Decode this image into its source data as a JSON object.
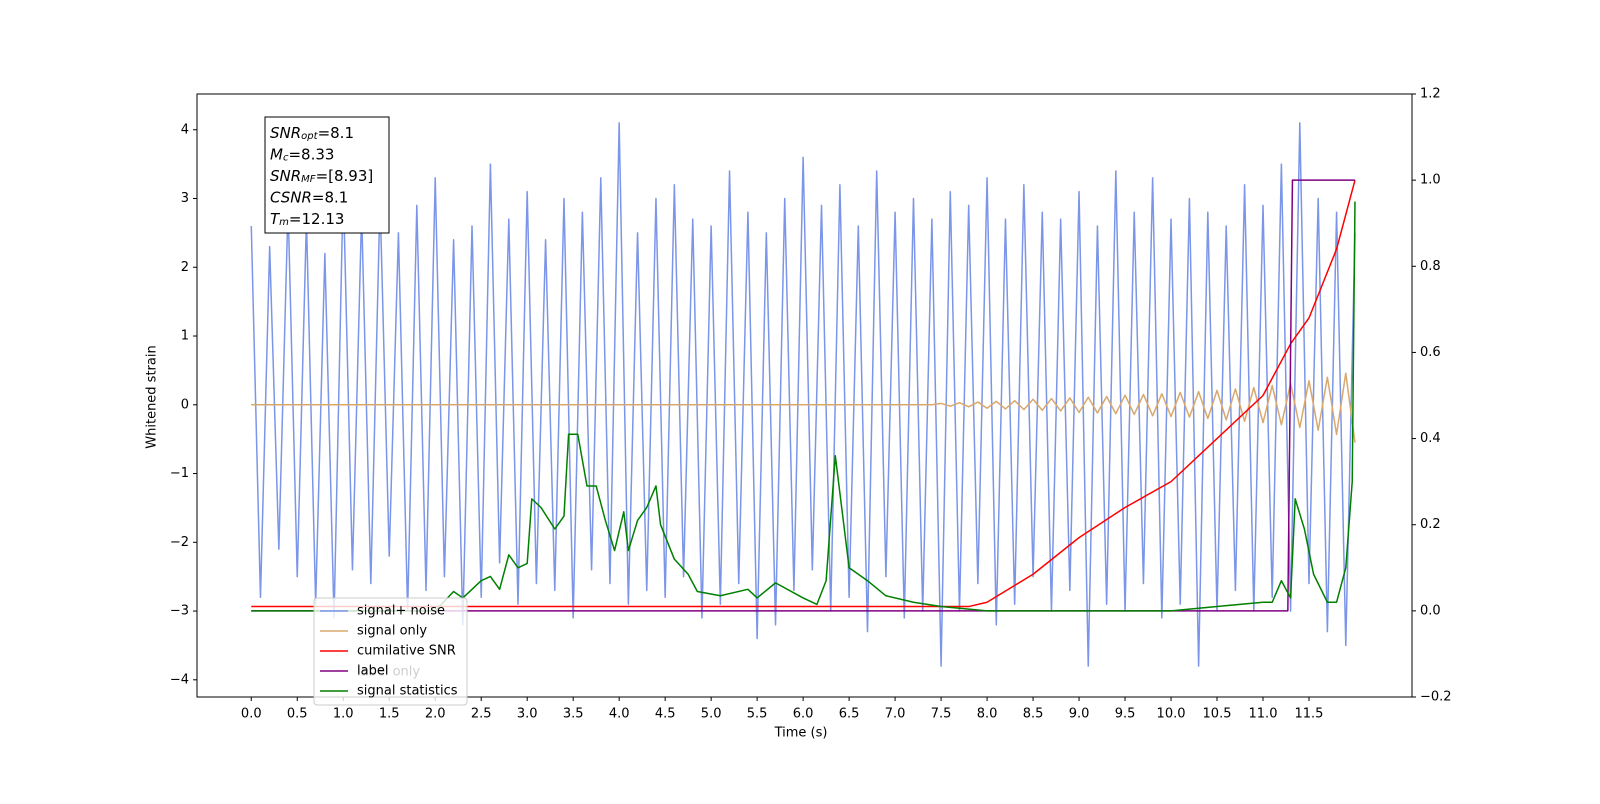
{
  "chart_data": {
    "type": "line",
    "xlabel": "Time (s)",
    "ylabel": "Whitened strain",
    "xlim": [
      -0.59,
      12.62
    ],
    "ylim": [
      -4.25,
      4.52
    ],
    "y2lim": [
      -0.2,
      1.2
    ],
    "xticks": [
      {
        "value": 0,
        "label": "0.0"
      },
      0.5,
      {
        "value": 1,
        "label": "1.0"
      },
      1.5,
      {
        "value": 2,
        "label": "2.0"
      },
      2.5,
      {
        "value": 3,
        "label": "3.0"
      },
      3.5,
      {
        "value": 4,
        "label": "4.0"
      },
      4.5,
      {
        "value": 5,
        "label": "5.0"
      },
      5.5,
      {
        "value": 6,
        "label": "6.0"
      },
      6.5,
      {
        "value": 7,
        "label": "7.0"
      },
      7.5,
      {
        "value": 8,
        "label": "8.0"
      },
      8.5,
      {
        "value": 9,
        "label": "9.0"
      },
      9.5,
      {
        "value": 10,
        "label": "10.0"
      },
      10.5,
      {
        "value": 11,
        "label": "11.0"
      },
      11.5
    ],
    "yticks": [
      {
        "value": -4,
        "label": "−4"
      },
      {
        "value": -3,
        "label": "−3"
      },
      {
        "value": -2,
        "label": "−2"
      },
      {
        "value": -1,
        "label": "−1"
      },
      0,
      1,
      2,
      3,
      4
    ],
    "y2ticks": [
      {
        "value": -0.2,
        "label": "−0.2"
      },
      {
        "value": 0,
        "label": "0.0"
      },
      0.2,
      0.4,
      0.6,
      0.8,
      {
        "value": 1,
        "label": "1.0"
      },
      1.2
    ],
    "info_box": [
      {
        "main": "SNR",
        "sub": "opt",
        "rest": "=8.1"
      },
      {
        "main": "M",
        "sub": "c",
        "rest": "=8.33"
      },
      {
        "main": "SNR",
        "sub": "MF",
        "rest": "=[8.93]"
      },
      {
        "main": "CSNR",
        "sub": null,
        "rest": "=8.1"
      },
      {
        "main": "T",
        "sub": "m",
        "rest": "=12.13"
      }
    ],
    "annotation": "label only",
    "x": [
      0,
      0.1,
      0.2,
      0.3,
      0.4,
      0.5,
      0.6,
      0.7,
      0.8,
      0.9,
      1,
      1.1,
      1.2,
      1.3,
      1.4,
      1.5,
      1.6,
      1.7,
      1.8,
      1.9,
      2,
      2.1,
      2.2,
      2.3,
      2.4,
      2.5,
      2.6,
      2.7,
      2.8,
      2.9,
      3,
      3.1,
      3.2,
      3.3,
      3.4,
      3.5,
      3.6,
      3.7,
      3.8,
      3.9,
      4,
      4.1,
      4.2,
      4.3,
      4.4,
      4.5,
      4.6,
      4.7,
      4.8,
      4.9,
      5,
      5.1,
      5.2,
      5.3,
      5.4,
      5.5,
      5.6,
      5.7,
      5.8,
      5.9,
      6,
      6.1,
      6.2,
      6.3,
      6.4,
      6.5,
      6.6,
      6.7,
      6.8,
      6.9,
      7,
      7.1,
      7.2,
      7.3,
      7.4,
      7.5,
      7.6,
      7.7,
      7.8,
      7.9,
      8,
      8.1,
      8.2,
      8.3,
      8.4,
      8.5,
      8.6,
      8.7,
      8.8,
      8.9,
      9,
      9.1,
      9.2,
      9.3,
      9.4,
      9.5,
      9.6,
      9.7,
      9.8,
      9.9,
      10,
      10.1,
      10.2,
      10.3,
      10.4,
      10.5,
      10.6,
      10.7,
      10.8,
      10.9,
      11,
      11.1,
      11.2,
      11.3,
      11.4,
      11.5,
      11.6,
      11.7,
      11.8,
      11.9,
      12
    ],
    "series": [
      {
        "name": "signal+ noise",
        "color": "#7b95e8",
        "axis": "y",
        "values": [
          2.6,
          -2.8,
          2.3,
          -2.1,
          2.9,
          -2.5,
          2.7,
          -2.9,
          2.2,
          -3.1,
          3.2,
          -2.4,
          2.8,
          -2.6,
          3.0,
          -2.2,
          2.5,
          -3.0,
          2.9,
          -2.7,
          3.3,
          -2.5,
          2.4,
          -3.2,
          2.6,
          -2.8,
          3.5,
          -2.3,
          2.7,
          -2.9,
          3.1,
          -2.6,
          2.4,
          -2.7,
          3.0,
          -3.1,
          2.8,
          -2.4,
          3.3,
          -2.6,
          4.1,
          -2.9,
          2.5,
          -2.7,
          3.0,
          -2.8,
          3.2,
          -2.5,
          2.7,
          -3.1,
          2.6,
          -2.9,
          3.4,
          -2.6,
          2.8,
          -3.4,
          2.5,
          -3.2,
          3.0,
          -2.7,
          3.6,
          -2.4,
          2.9,
          -3.0,
          3.2,
          -2.8,
          2.6,
          -3.3,
          3.4,
          -2.5,
          2.8,
          -3.1,
          3.0,
          -3.0,
          2.7,
          -3.8,
          3.1,
          -3.0,
          2.9,
          -2.6,
          3.3,
          -3.2,
          2.7,
          -2.9,
          3.2,
          -2.5,
          2.8,
          -3.0,
          2.7,
          -2.7,
          3.1,
          -3.8,
          2.6,
          -2.9,
          3.4,
          -3.0,
          2.8,
          -2.6,
          3.3,
          -3.1,
          2.7,
          -2.9,
          3.0,
          -3.8,
          2.8,
          -3.0,
          2.6,
          -2.7,
          3.2,
          -3.0,
          2.9,
          -2.8,
          3.5,
          -3.0,
          4.1,
          -2.6,
          3.0,
          -3.3,
          2.8,
          -3.5,
          2.5
        ]
      },
      {
        "name": "signal only",
        "color": "#d9a86c",
        "axis": "y",
        "values": [
          0,
          0,
          0,
          0,
          0,
          0,
          0,
          0,
          0,
          0,
          0,
          0,
          0,
          0,
          0,
          0,
          0,
          0,
          0,
          0,
          0,
          0,
          0,
          0,
          0,
          0,
          0,
          0,
          0,
          0,
          0,
          0,
          0,
          0,
          0,
          0,
          0,
          0,
          0,
          0,
          0,
          0,
          0,
          0,
          0,
          0,
          0,
          0,
          0,
          0,
          0,
          0,
          0,
          0,
          0,
          0,
          0,
          0,
          0,
          0,
          0,
          0,
          0,
          0,
          0,
          0,
          0,
          0,
          0,
          0,
          0,
          0,
          0,
          0,
          0,
          0.02,
          -0.02,
          0.03,
          -0.03,
          0.04,
          -0.05,
          0.05,
          -0.06,
          0.06,
          -0.07,
          0.08,
          -0.08,
          0.09,
          -0.09,
          0.1,
          -0.11,
          0.11,
          -0.12,
          0.12,
          -0.13,
          0.14,
          -0.14,
          0.15,
          -0.16,
          0.16,
          -0.17,
          0.18,
          -0.18,
          0.19,
          -0.2,
          0.21,
          -0.22,
          0.23,
          -0.24,
          0.25,
          -0.26,
          0.28,
          -0.29,
          0.31,
          -0.33,
          0.35,
          -0.37,
          0.4,
          -0.43,
          0.46,
          -0.55
        ]
      },
      {
        "name": "cumilative SNR",
        "color": "#ff0000",
        "axis": "y2",
        "x": [
          0,
          7.5,
          7.8,
          8.0,
          8.5,
          9.0,
          9.5,
          10.0,
          10.5,
          11.0,
          11.3,
          11.5,
          11.8,
          12.0
        ],
        "values": [
          0.01,
          0.01,
          0.01,
          0.02,
          0.085,
          0.17,
          0.24,
          0.3,
          0.4,
          0.5,
          0.62,
          0.68,
          0.84,
          1.0
        ]
      },
      {
        "name": "label",
        "color": "#800080",
        "axis": "y2",
        "x": [
          0,
          11.27,
          11.32,
          12.0
        ],
        "values": [
          0,
          0,
          1,
          1
        ]
      },
      {
        "name": "signal statistics",
        "color": "#008000",
        "axis": "y2",
        "x": [
          0,
          2.0,
          2.2,
          2.3,
          2.5,
          2.6,
          2.7,
          2.8,
          2.9,
          3.0,
          3.05,
          3.15,
          3.3,
          3.4,
          3.45,
          3.55,
          3.65,
          3.75,
          3.85,
          3.95,
          4.05,
          4.1,
          4.2,
          4.3,
          4.4,
          4.45,
          4.6,
          4.75,
          4.85,
          5.1,
          5.4,
          5.5,
          5.7,
          6.0,
          6.15,
          6.25,
          6.35,
          6.5,
          6.7,
          6.9,
          7.2,
          7.5,
          8.0,
          10.0,
          10.5,
          11.0,
          11.1,
          11.2,
          11.3,
          11.35,
          11.45,
          11.55,
          11.7,
          11.8,
          11.9,
          11.97,
          12.0
        ],
        "values": [
          0,
          0,
          0.045,
          0.03,
          0.07,
          0.08,
          0.05,
          0.13,
          0.1,
          0.11,
          0.26,
          0.24,
          0.19,
          0.22,
          0.41,
          0.41,
          0.29,
          0.29,
          0.21,
          0.14,
          0.23,
          0.14,
          0.21,
          0.24,
          0.29,
          0.2,
          0.12,
          0.085,
          0.045,
          0.035,
          0.05,
          0.03,
          0.065,
          0.03,
          0.015,
          0.07,
          0.36,
          0.1,
          0.07,
          0.035,
          0.02,
          0.01,
          0,
          0,
          0.01,
          0.02,
          0.02,
          0.07,
          0.03,
          0.26,
          0.19,
          0.085,
          0.02,
          0.02,
          0.1,
          0.3,
          0.95
        ]
      }
    ]
  }
}
